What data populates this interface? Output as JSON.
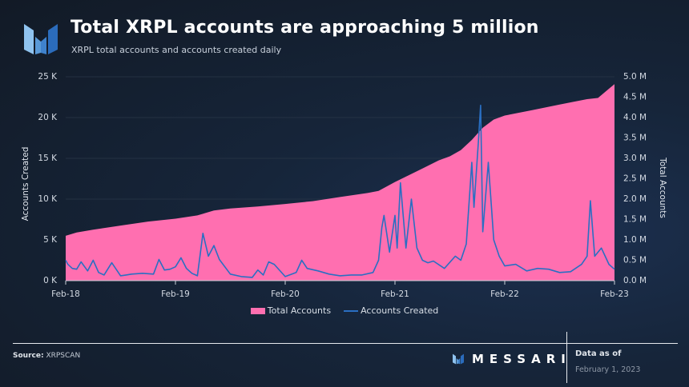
{
  "header": {
    "title": "Total XRPL accounts are approaching 5 million",
    "subtitle": "XRPL total accounts and accounts created daily"
  },
  "legend": {
    "total_accounts": "Total Accounts",
    "accounts_created": "Accounts Created"
  },
  "footer": {
    "source_label": "Source:",
    "source_value": "XRPSCAN",
    "brand": "MESSARI",
    "data_as_of_label": "Data as of",
    "data_as_of_date": "February 1, 2023"
  },
  "colors": {
    "total_accounts": "#ff6fb0",
    "accounts_created": "#2a6fc2",
    "background": "#16253a"
  },
  "chart_data": {
    "type": "area+line",
    "title": "Total XRPL accounts are approaching 5 million",
    "subtitle": "XRPL total accounts and accounts created daily",
    "xlabel": "",
    "ylabel_left": "Accounts Created",
    "ylabel_right": "Total Accounts",
    "x_ticks": [
      "Feb-18",
      "Feb-19",
      "Feb-20",
      "Feb-21",
      "Feb-22",
      "Feb-23"
    ],
    "y_left_ticks": [
      "0 K",
      "5 K",
      "10 K",
      "15 K",
      "20 K",
      "25 K"
    ],
    "y_right_ticks": [
      "0.0 M",
      "0.5 M",
      "1.0 M",
      "1.5 M",
      "2.0 M",
      "2.5 M",
      "3.0 M",
      "3.5 M",
      "4.0 M",
      "4.5 M",
      "5.0 M"
    ],
    "ylim_left": [
      0,
      25000
    ],
    "ylim_right": [
      0,
      5000000
    ],
    "grid": "horizontal",
    "legend_position": "bottom",
    "series": [
      {
        "name": "Total Accounts",
        "type": "area",
        "axis": "right",
        "unit": "M",
        "x": [
          0,
          0.1,
          0.25,
          0.5,
          0.75,
          1.0,
          1.2,
          1.35,
          1.5,
          1.75,
          2.0,
          2.25,
          2.5,
          2.75,
          2.85,
          3.0,
          3.1,
          3.25,
          3.4,
          3.5,
          3.6,
          3.7,
          3.8,
          3.9,
          4.0,
          4.25,
          4.5,
          4.75,
          4.85,
          5.0
        ],
        "values": [
          1.1,
          1.18,
          1.25,
          1.35,
          1.45,
          1.52,
          1.6,
          1.72,
          1.77,
          1.82,
          1.88,
          1.95,
          2.05,
          2.15,
          2.2,
          2.42,
          2.55,
          2.75,
          2.95,
          3.05,
          3.2,
          3.45,
          3.75,
          3.95,
          4.05,
          4.18,
          4.32,
          4.45,
          4.48,
          4.82
        ]
      },
      {
        "name": "Accounts Created",
        "type": "line",
        "axis": "left",
        "unit": "K",
        "x": [
          0,
          0.02,
          0.06,
          0.1,
          0.14,
          0.2,
          0.25,
          0.3,
          0.35,
          0.42,
          0.5,
          0.55,
          0.6,
          0.7,
          0.8,
          0.85,
          0.9,
          0.95,
          1.0,
          1.05,
          1.1,
          1.15,
          1.2,
          1.25,
          1.3,
          1.35,
          1.4,
          1.5,
          1.6,
          1.7,
          1.75,
          1.8,
          1.85,
          1.9,
          2.0,
          2.1,
          2.15,
          2.2,
          2.3,
          2.4,
          2.5,
          2.6,
          2.7,
          2.8,
          2.85,
          2.88,
          2.9,
          2.95,
          3.0,
          3.02,
          3.05,
          3.1,
          3.15,
          3.2,
          3.25,
          3.3,
          3.35,
          3.45,
          3.55,
          3.6,
          3.65,
          3.7,
          3.72,
          3.76,
          3.78,
          3.8,
          3.85,
          3.9,
          3.95,
          4.0,
          4.1,
          4.2,
          4.3,
          4.4,
          4.5,
          4.6,
          4.7,
          4.75,
          4.78,
          4.82,
          4.88,
          4.95,
          5.0
        ],
        "values": [
          2.5,
          2.0,
          1.5,
          1.4,
          2.3,
          1.2,
          2.5,
          1.0,
          0.7,
          2.2,
          0.6,
          0.7,
          0.8,
          0.9,
          0.8,
          2.6,
          1.3,
          1.4,
          1.7,
          2.8,
          1.5,
          0.9,
          0.6,
          5.8,
          3.0,
          4.3,
          2.6,
          0.8,
          0.5,
          0.4,
          1.3,
          0.7,
          2.3,
          2.0,
          0.5,
          1.0,
          2.5,
          1.5,
          1.2,
          0.8,
          0.6,
          0.7,
          0.7,
          1.0,
          2.5,
          6.5,
          8.0,
          3.5,
          8.0,
          4.0,
          12.0,
          4.0,
          10.0,
          4.0,
          2.5,
          2.2,
          2.4,
          1.5,
          3.0,
          2.5,
          4.5,
          14.5,
          9.0,
          17.0,
          21.5,
          6.0,
          14.5,
          5.0,
          3.0,
          1.8,
          2.0,
          1.2,
          1.5,
          1.4,
          1.0,
          1.1,
          2.0,
          3.0,
          9.8,
          3.0,
          4.0,
          2.0,
          1.4
        ]
      }
    ]
  }
}
